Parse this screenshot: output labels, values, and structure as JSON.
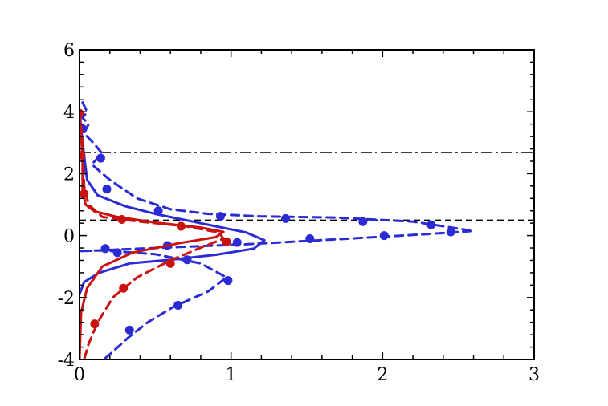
{
  "chart_data": {
    "type": "line",
    "title": "",
    "xlabel": "",
    "ylabel": "",
    "xlim": [
      0,
      3
    ],
    "ylim": [
      -4,
      6
    ],
    "grid": false,
    "legend": "none",
    "x_ticks": [
      0,
      1,
      2,
      3
    ],
    "y_ticks": [
      -4,
      -2,
      0,
      2,
      4,
      6
    ],
    "x_tick_labels": [
      "0",
      "1",
      "2",
      "3"
    ],
    "y_tick_labels": [
      "-4",
      "-2",
      "0",
      "2",
      "4",
      "6"
    ],
    "reference_lines": [
      {
        "y": 2.68,
        "style": "dashdot",
        "color": "#000000"
      },
      {
        "y": 0.5,
        "style": "dashed",
        "color": "#000000"
      }
    ],
    "series": [
      {
        "color": "#2b2bd6",
        "style": "dashed",
        "kind": "line",
        "points": [
          [
            0.02,
            4.3
          ],
          [
            0.05,
            4.0
          ],
          [
            0.02,
            3.8
          ],
          [
            0.06,
            3.6
          ],
          [
            0.03,
            3.3
          ],
          [
            0.09,
            3.0
          ],
          [
            0.15,
            2.65
          ],
          [
            0.08,
            2.3
          ],
          [
            0.2,
            1.8
          ],
          [
            0.38,
            1.2
          ],
          [
            0.6,
            0.85
          ],
          [
            0.85,
            0.7
          ],
          [
            1.2,
            0.62
          ],
          [
            1.7,
            0.58
          ],
          [
            2.2,
            0.45
          ],
          [
            2.6,
            0.15
          ],
          [
            2.3,
            0.05
          ],
          [
            1.7,
            -0.12
          ],
          [
            1.1,
            -0.28
          ],
          [
            0.4,
            -0.42
          ],
          [
            0.12,
            -0.48
          ],
          [
            0.0,
            -0.5
          ],
          [
            0.15,
            -0.48
          ],
          [
            0.5,
            -0.6
          ],
          [
            0.8,
            -0.9
          ],
          [
            0.97,
            -1.35
          ],
          [
            0.85,
            -1.8
          ],
          [
            0.62,
            -2.3
          ],
          [
            0.45,
            -2.8
          ],
          [
            0.32,
            -3.3
          ],
          [
            0.22,
            -3.75
          ],
          [
            0.16,
            -4.0
          ]
        ]
      },
      {
        "color": "#2b2bd6",
        "style": "solid",
        "kind": "line",
        "points": [
          [
            0.0,
            4.0
          ],
          [
            0.02,
            3.0
          ],
          [
            0.05,
            1.8
          ],
          [
            0.12,
            1.3
          ],
          [
            0.3,
            0.95
          ],
          [
            0.5,
            0.7
          ],
          [
            0.8,
            0.4
          ],
          [
            1.1,
            0.1
          ],
          [
            1.22,
            -0.15
          ],
          [
            1.15,
            -0.42
          ],
          [
            0.9,
            -0.62
          ],
          [
            0.6,
            -0.78
          ],
          [
            0.33,
            -0.9
          ],
          [
            0.13,
            -1.2
          ],
          [
            0.03,
            -1.5
          ],
          [
            0.0,
            -1.9
          ]
        ]
      },
      {
        "color": "#2b2bd6",
        "style": "none",
        "kind": "markers",
        "points": [
          [
            0.02,
            3.45
          ],
          [
            0.14,
            2.5
          ],
          [
            0.18,
            1.5
          ],
          [
            0.52,
            0.8
          ],
          [
            0.93,
            0.62
          ],
          [
            1.36,
            0.55
          ],
          [
            1.87,
            0.45
          ],
          [
            2.32,
            0.35
          ],
          [
            2.45,
            0.12
          ],
          [
            2.01,
            0.0
          ],
          [
            1.52,
            -0.1
          ],
          [
            1.04,
            -0.22
          ],
          [
            0.58,
            -0.32
          ],
          [
            0.25,
            -0.55
          ],
          [
            0.17,
            -0.42
          ],
          [
            0.71,
            -0.78
          ],
          [
            0.98,
            -1.45
          ],
          [
            0.65,
            -2.25
          ],
          [
            0.33,
            -3.05
          ]
        ]
      },
      {
        "color": "#cc1111",
        "style": "solid",
        "kind": "line",
        "points": [
          [
            0.0,
            4.0
          ],
          [
            0.02,
            2.5
          ],
          [
            0.02,
            1.5
          ],
          [
            0.04,
            1.0
          ],
          [
            0.1,
            0.78
          ],
          [
            0.25,
            0.6
          ],
          [
            0.5,
            0.42
          ],
          [
            0.8,
            0.26
          ],
          [
            0.95,
            0.12
          ],
          [
            0.9,
            -0.05
          ],
          [
            0.65,
            -0.25
          ],
          [
            0.35,
            -0.55
          ],
          [
            0.15,
            -1.0
          ],
          [
            0.05,
            -1.7
          ],
          [
            0.01,
            -2.5
          ],
          [
            0.0,
            -4.0
          ]
        ]
      },
      {
        "color": "#cc1111",
        "style": "dashed",
        "kind": "line",
        "points": [
          [
            0.0,
            4.0
          ],
          [
            0.02,
            3.0
          ],
          [
            0.03,
            1.6
          ],
          [
            0.06,
            1.0
          ],
          [
            0.15,
            0.6
          ],
          [
            0.4,
            0.45
          ],
          [
            0.7,
            0.3
          ],
          [
            0.92,
            0.1
          ],
          [
            0.95,
            -0.1
          ],
          [
            0.82,
            -0.35
          ],
          [
            0.6,
            -0.8
          ],
          [
            0.38,
            -1.35
          ],
          [
            0.22,
            -2.0
          ],
          [
            0.12,
            -2.8
          ],
          [
            0.06,
            -3.5
          ],
          [
            0.03,
            -4.0
          ]
        ]
      },
      {
        "color": "#cc1111",
        "style": "none",
        "kind": "markers",
        "points": [
          [
            0.0,
            3.95
          ],
          [
            0.01,
            2.6
          ],
          [
            0.03,
            1.35
          ],
          [
            0.28,
            0.52
          ],
          [
            0.67,
            0.3
          ],
          [
            0.97,
            -0.2
          ],
          [
            0.6,
            -0.9
          ],
          [
            0.29,
            -1.7
          ],
          [
            0.1,
            -2.85
          ]
        ]
      }
    ]
  }
}
